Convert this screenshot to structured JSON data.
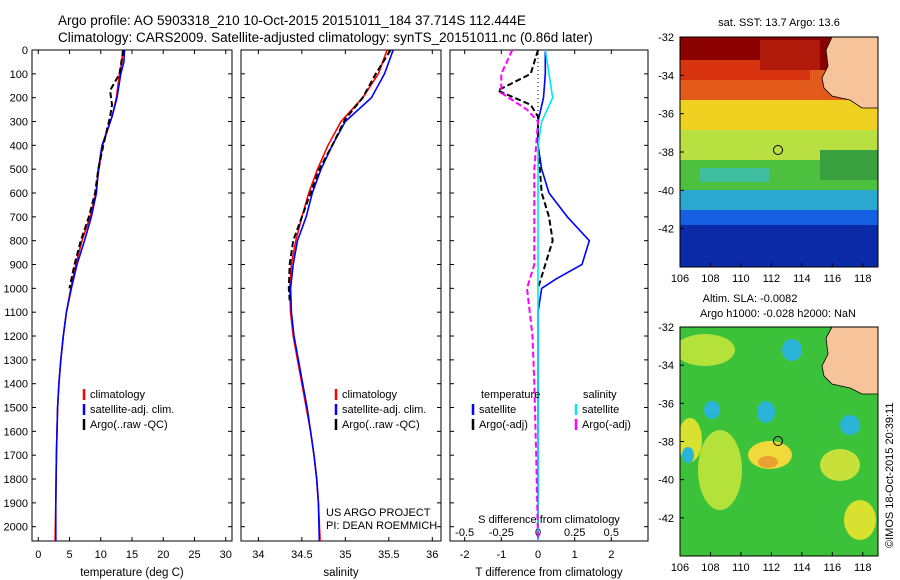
{
  "header": {
    "line1": "Argo profile: AO 5903318_210 10-Oct-2015 20151011_184 37.714S 112.444E",
    "line2": "Climatology: CARS2009. Satellite-adjusted climatology: synTS_20151011.nc (0.86d later)"
  },
  "colors": {
    "climatology": "#ff0000",
    "satellite": "#0000ff",
    "argo": "#000000",
    "sal_satellite": "#00e5ee",
    "sal_argo": "#ff00ff",
    "land": "#f7c39b"
  },
  "chart_data": [
    {
      "type": "line",
      "id": "temperature",
      "xlabel": "temperature (deg C)",
      "ylabel": "",
      "xlim": [
        -1,
        31
      ],
      "ylim": [
        2060,
        0
      ],
      "xticks": [
        0,
        5,
        10,
        15,
        20,
        25,
        30
      ],
      "yticks": [
        0,
        100,
        200,
        300,
        400,
        500,
        600,
        700,
        800,
        900,
        1000,
        1100,
        1200,
        1300,
        1400,
        1500,
        1600,
        1700,
        1800,
        1900,
        2000
      ],
      "legend": [
        "climatology",
        "satellite-adj. clim.",
        "Argo(..raw -QC)"
      ],
      "legend_position": "lower-middle",
      "series": [
        {
          "name": "climatology",
          "color": "#ff0000",
          "style": "solid",
          "points": [
            [
              13.5,
              0
            ],
            [
              13.4,
              50
            ],
            [
              13.0,
              100
            ],
            [
              12.5,
              200
            ],
            [
              11.8,
              280
            ],
            [
              10.3,
              400
            ],
            [
              9.7,
              500
            ],
            [
              9.2,
              600
            ],
            [
              8.3,
              700
            ],
            [
              7.0,
              800
            ],
            [
              6.0,
              900
            ],
            [
              5.2,
              1000
            ],
            [
              4.5,
              1100
            ],
            [
              4.0,
              1200
            ],
            [
              3.6,
              1300
            ],
            [
              3.3,
              1400
            ],
            [
              3.1,
              1500
            ],
            [
              2.9,
              1700
            ],
            [
              2.8,
              1900
            ],
            [
              2.7,
              2060
            ]
          ]
        },
        {
          "name": "satellite-adj. clim.",
          "color": "#0000ff",
          "style": "solid",
          "points": [
            [
              13.8,
              0
            ],
            [
              13.7,
              50
            ],
            [
              13.2,
              100
            ],
            [
              12.6,
              200
            ],
            [
              11.8,
              280
            ],
            [
              10.2,
              400
            ],
            [
              9.6,
              500
            ],
            [
              9.3,
              600
            ],
            [
              8.5,
              700
            ],
            [
              7.4,
              800
            ],
            [
              6.2,
              900
            ],
            [
              5.3,
              1000
            ],
            [
              4.5,
              1100
            ],
            [
              4.0,
              1200
            ],
            [
              3.6,
              1300
            ],
            [
              3.3,
              1400
            ],
            [
              3.1,
              1500
            ],
            [
              2.9,
              1700
            ],
            [
              2.8,
              1900
            ],
            [
              2.8,
              2060
            ]
          ]
        },
        {
          "name": "Argo(..raw -QC)",
          "color": "#000000",
          "style": "dashed",
          "points": [
            [
              13.6,
              0
            ],
            [
              13.0,
              100
            ],
            [
              11.5,
              170
            ],
            [
              11.8,
              230
            ],
            [
              11.5,
              280
            ],
            [
              10.4,
              400
            ],
            [
              9.6,
              500
            ],
            [
              9.1,
              600
            ],
            [
              8.1,
              700
            ],
            [
              6.8,
              800
            ],
            [
              5.8,
              900
            ],
            [
              5.0,
              1000
            ]
          ]
        }
      ]
    },
    {
      "type": "line",
      "id": "salinity",
      "xlabel": "salinity",
      "ylabel": "",
      "xlim": [
        33.8,
        36.1
      ],
      "ylim": [
        2060,
        0
      ],
      "xticks": [
        34,
        34.5,
        35,
        35.5,
        36
      ],
      "legend": [
        "climatology",
        "satellite-adj. clim.",
        "Argo(..raw -QC)"
      ],
      "legend_position": "lower-right",
      "annotations": [
        "US ARGO PROJECT",
        "PI: DEAN ROEMMICH"
      ],
      "series": [
        {
          "name": "climatology",
          "color": "#ff0000",
          "style": "solid",
          "points": [
            [
              35.48,
              0
            ],
            [
              35.38,
              100
            ],
            [
              35.2,
              200
            ],
            [
              34.95,
              300
            ],
            [
              34.8,
              400
            ],
            [
              34.68,
              500
            ],
            [
              34.58,
              600
            ],
            [
              34.5,
              700
            ],
            [
              34.43,
              800
            ],
            [
              34.38,
              900
            ],
            [
              34.36,
              1000
            ],
            [
              34.37,
              1100
            ],
            [
              34.4,
              1200
            ],
            [
              34.45,
              1300
            ],
            [
              34.5,
              1400
            ],
            [
              34.55,
              1500
            ],
            [
              34.6,
              1600
            ],
            [
              34.64,
              1700
            ],
            [
              34.67,
              1800
            ],
            [
              34.69,
              1900
            ],
            [
              34.71,
              2060
            ]
          ]
        },
        {
          "name": "satellite-adj. clim.",
          "color": "#0000ff",
          "style": "solid",
          "points": [
            [
              35.55,
              0
            ],
            [
              35.45,
              100
            ],
            [
              35.3,
              200
            ],
            [
              35.0,
              300
            ],
            [
              34.85,
              400
            ],
            [
              34.72,
              500
            ],
            [
              34.62,
              600
            ],
            [
              34.55,
              700
            ],
            [
              34.45,
              800
            ],
            [
              34.4,
              900
            ],
            [
              34.37,
              1000
            ],
            [
              34.38,
              1100
            ],
            [
              34.41,
              1200
            ],
            [
              34.46,
              1300
            ],
            [
              34.51,
              1400
            ],
            [
              34.56,
              1500
            ],
            [
              34.6,
              1600
            ],
            [
              34.64,
              1700
            ],
            [
              34.67,
              1800
            ],
            [
              34.69,
              1900
            ],
            [
              34.7,
              2060
            ]
          ]
        },
        {
          "name": "Argo(..raw -QC)",
          "color": "#000000",
          "style": "dashed",
          "points": [
            [
              35.52,
              0
            ],
            [
              35.35,
              100
            ],
            [
              35.2,
              200
            ],
            [
              35.0,
              290
            ],
            [
              34.85,
              400
            ],
            [
              34.7,
              500
            ],
            [
              34.6,
              600
            ],
            [
              34.5,
              700
            ],
            [
              34.4,
              800
            ],
            [
              34.36,
              900
            ],
            [
              34.35,
              1000
            ],
            [
              34.36,
              1050
            ]
          ]
        }
      ]
    },
    {
      "type": "line",
      "id": "difference",
      "xlabel": "T difference from climatology",
      "xlabel_top": "S difference from climatology",
      "xlim": [
        -2.4,
        3.0
      ],
      "ylim": [
        2060,
        0
      ],
      "xticks": [
        -2,
        -1,
        0,
        1,
        2
      ],
      "xticks_s": [
        -0.5,
        -0.25,
        0,
        0.25,
        0.5
      ],
      "legend_titles": [
        "temperature",
        "salinity"
      ],
      "legend": [
        "satellite",
        "Argo(-adj)",
        "satellite",
        "Argo(-adj)"
      ],
      "legend_position": "lower-middle",
      "series": [
        {
          "name": "satellite",
          "variable": "temperature",
          "color": "#0000ff",
          "style": "solid",
          "points": [
            [
              0.2,
              0
            ],
            [
              0.2,
              100
            ],
            [
              0.15,
              200
            ],
            [
              0,
              300
            ],
            [
              0,
              400
            ],
            [
              0.1,
              500
            ],
            [
              0.3,
              600
            ],
            [
              0.8,
              700
            ],
            [
              1.4,
              800
            ],
            [
              1.2,
              900
            ],
            [
              0.5,
              960
            ],
            [
              0.1,
              1000
            ],
            [
              0,
              1100
            ],
            [
              0,
              2060
            ]
          ]
        },
        {
          "name": "Argo(-adj)",
          "variable": "temperature",
          "color": "#000000",
          "style": "dashed",
          "points": [
            [
              0,
              0
            ],
            [
              -0.2,
              100
            ],
            [
              -1.1,
              170
            ],
            [
              -0.2,
              230
            ],
            [
              0,
              280
            ],
            [
              0,
              400
            ],
            [
              0.1,
              600
            ],
            [
              0.3,
              700
            ],
            [
              0.4,
              800
            ],
            [
              0.2,
              900
            ],
            [
              0,
              1000
            ]
          ]
        },
        {
          "name": "satellite",
          "variable": "salinity",
          "color": "#00e5ee",
          "style": "solid",
          "points": [
            [
              0.2,
              0
            ],
            [
              0.3,
              100
            ],
            [
              0.4,
              200
            ],
            [
              0.1,
              300
            ],
            [
              0,
              400
            ],
            [
              0,
              2060
            ]
          ]
        },
        {
          "name": "Argo(-adj)",
          "variable": "salinity",
          "color": "#ff00ff",
          "style": "dashed",
          "points": [
            [
              -0.7,
              0
            ],
            [
              -1.0,
              100
            ],
            [
              -1.0,
              180
            ],
            [
              -0.3,
              250
            ],
            [
              0,
              300
            ],
            [
              -0.1,
              500
            ],
            [
              -0.1,
              900
            ],
            [
              -0.3,
              1000
            ],
            [
              -0.15,
              1200
            ],
            [
              -0.1,
              1400
            ],
            [
              -0.05,
              1700
            ],
            [
              0,
              2060
            ]
          ]
        }
      ]
    },
    {
      "type": "heatmap",
      "id": "sst_map",
      "title": "sat. SST: 13.7  Argo: 13.6",
      "xlim": [
        106,
        119
      ],
      "ylim": [
        -44,
        -32
      ],
      "xticks": [
        106,
        108,
        110,
        112,
        114,
        116,
        118
      ],
      "yticks": [
        -32,
        -34,
        -36,
        -38,
        -40,
        -42
      ],
      "marker": [
        112.444,
        -37.714
      ]
    },
    {
      "type": "heatmap",
      "id": "sla_map",
      "title": "Altim. SLA: -0.0082",
      "subtitle": "Argo h1000: -0.028 h2000: NaN",
      "xlim": [
        106,
        119
      ],
      "ylim": [
        -44,
        -32
      ],
      "xticks": [
        106,
        108,
        110,
        112,
        114,
        116,
        118
      ],
      "yticks": [
        -32,
        -34,
        -36,
        -38,
        -40,
        -42
      ],
      "marker": [
        112.444,
        -37.714
      ]
    }
  ],
  "watermark": "©IMOS 18-Oct-2015 20:39:11"
}
